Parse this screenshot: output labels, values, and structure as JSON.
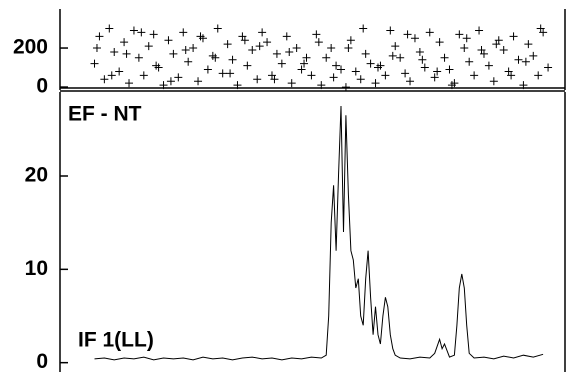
{
  "chart_data": [
    {
      "type": "scatter",
      "marker": "+",
      "color": "#000",
      "x": [
        7,
        8,
        9,
        10,
        11,
        12,
        13,
        14,
        15,
        16,
        17,
        18,
        19,
        20,
        21,
        22,
        23,
        24,
        25,
        26,
        27,
        28,
        29,
        30,
        31,
        32,
        33,
        34,
        35,
        36,
        37,
        38,
        39,
        40,
        41,
        42,
        43,
        44,
        45,
        46,
        47,
        48,
        49,
        50,
        51,
        52,
        53,
        54,
        55,
        56,
        57,
        58,
        59,
        60,
        61,
        62,
        63,
        64,
        65,
        66,
        67,
        68,
        69,
        70,
        71,
        72,
        73,
        74,
        75,
        76,
        77,
        78,
        79,
        80,
        81,
        82,
        83,
        84,
        85,
        86,
        87,
        88,
        89,
        90,
        91,
        92,
        93,
        94,
        95,
        96,
        97,
        98,
        99,
        7.5,
        10.5,
        13.5,
        16.5,
        19.5,
        22.5,
        25.5,
        28.5,
        31.5,
        34.5,
        37.5,
        40.5,
        43.5,
        46.5,
        49.5,
        52.5,
        55.5,
        58.5,
        61.5,
        64.5,
        67.5,
        70.5,
        73.5,
        76.5,
        79.5,
        82.5,
        85.5,
        88.5,
        91.5,
        94.5,
        97.5
      ],
      "values": [
        120,
        260,
        40,
        300,
        180,
        80,
        230,
        20,
        290,
        150,
        60,
        210,
        270,
        100,
        10,
        240,
        170,
        50,
        280,
        130,
        200,
        30,
        250,
        90,
        160,
        300,
        70,
        220,
        140,
        10,
        260,
        110,
        190,
        40,
        280,
        230,
        60,
        170,
        120,
        260,
        20,
        200,
        90,
        150,
        60,
        270,
        10,
        150,
        200,
        110,
        90,
        0,
        240,
        80,
        40,
        170,
        120,
        20,
        110,
        60,
        290,
        210,
        150,
        70,
        30,
        250,
        180,
        100,
        280,
        50,
        230,
        150,
        90,
        20,
        270,
        200,
        130,
        60,
        290,
        170,
        110,
        30,
        240,
        190,
        80,
        260,
        140,
        10,
        220,
        160,
        60,
        280,
        100,
        200,
        60,
        170,
        280,
        110,
        30,
        190,
        260,
        150,
        70,
        240,
        210,
        40,
        180,
        120,
        230,
        50,
        200,
        300,
        100,
        160,
        270,
        140,
        80,
        10,
        250,
        190,
        220,
        60,
        130,
        300
      ],
      "xlim": [
        0,
        100
      ],
      "ylim": [
        -15,
        400
      ],
      "yticks": [
        0,
        200
      ]
    },
    {
      "type": "line",
      "color": "#000",
      "annotations": [
        "EF - NT",
        "IF 1(LL)"
      ],
      "x": [
        7,
        9,
        11,
        13,
        15,
        17,
        19,
        21,
        23,
        25,
        27,
        29,
        31,
        33,
        35,
        37,
        39,
        41,
        43,
        45,
        47,
        49,
        51,
        53,
        54,
        54.5,
        55,
        55.5,
        56,
        56.5,
        57,
        57.5,
        58,
        58.5,
        59,
        59.5,
        60,
        60.5,
        61,
        61.5,
        62,
        62.5,
        63,
        63.5,
        64,
        64.5,
        65,
        65.5,
        66,
        66.5,
        67,
        67.5,
        68,
        69,
        71,
        73,
        75,
        76,
        77,
        77.5,
        78,
        79,
        80,
        80.5,
        81,
        81.5,
        82,
        82.5,
        83,
        84,
        86,
        88,
        90,
        92,
        94,
        96,
        98
      ],
      "values": [
        0.4,
        0.5,
        0.3,
        0.5,
        0.4,
        0.6,
        0.3,
        0.5,
        0.4,
        0.5,
        0.3,
        0.6,
        0.4,
        0.5,
        0.3,
        0.5,
        0.6,
        0.4,
        0.5,
        0.3,
        0.5,
        0.4,
        0.6,
        0.5,
        0.8,
        5,
        15,
        19,
        12,
        20,
        27.5,
        14,
        26.5,
        18,
        12,
        11,
        8,
        9,
        5,
        4,
        9,
        12,
        7,
        3,
        6,
        3,
        2,
        5,
        7,
        6,
        3,
        1.5,
        0.8,
        0.5,
        0.4,
        0.6,
        0.5,
        1,
        2.5,
        1.5,
        2,
        0.6,
        0.8,
        4,
        8,
        9.5,
        8,
        4,
        1,
        0.5,
        0.6,
        0.4,
        0.7,
        0.5,
        0.8,
        0.6,
        0.9
      ],
      "xlim": [
        0,
        100
      ],
      "ylim": [
        -1,
        29
      ],
      "yticks": [
        0,
        10,
        20
      ]
    }
  ]
}
